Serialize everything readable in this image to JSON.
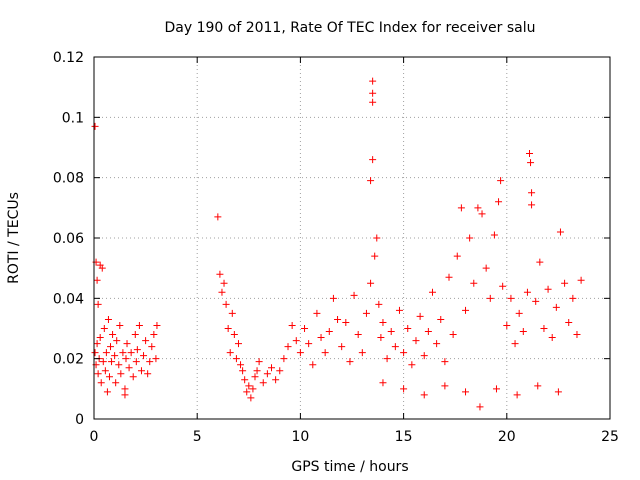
{
  "chart_data": {
    "type": "scatter",
    "title": "Day 190 of 2011, Rate Of TEC Index for receiver salu",
    "xlabel": "GPS time / hours",
    "ylabel": "ROTI / TECUs",
    "xlim": [
      0,
      25
    ],
    "ylim": [
      0,
      0.12
    ],
    "xticks": [
      0,
      5,
      10,
      15,
      20,
      25
    ],
    "xtick_labels": [
      "0",
      "5",
      "10",
      "15",
      "20",
      "25"
    ],
    "yticks": [
      0,
      0.02,
      0.04,
      0.06,
      0.08,
      0.1,
      0.12
    ],
    "ytick_labels": [
      "0",
      "0.02",
      "0.04",
      "0.06",
      "0.08",
      "0.1",
      "0.12"
    ],
    "grid": true,
    "marker": "plus",
    "series_color": "#ff0000",
    "series": [
      {
        "points": [
          [
            0.05,
            0.097
          ],
          [
            0.1,
            0.052
          ],
          [
            0.15,
            0.046
          ],
          [
            0.2,
            0.038
          ],
          [
            0.3,
            0.051
          ],
          [
            0.4,
            0.05
          ],
          [
            0.05,
            0.022
          ],
          [
            0.1,
            0.018
          ],
          [
            0.15,
            0.025
          ],
          [
            0.2,
            0.015
          ],
          [
            0.25,
            0.02
          ],
          [
            0.3,
            0.027
          ],
          [
            0.35,
            0.012
          ],
          [
            0.45,
            0.019
          ],
          [
            0.5,
            0.03
          ],
          [
            0.55,
            0.016
          ],
          [
            0.6,
            0.022
          ],
          [
            0.7,
            0.033
          ],
          [
            0.75,
            0.014
          ],
          [
            0.8,
            0.024
          ],
          [
            0.85,
            0.019
          ],
          [
            0.9,
            0.028
          ],
          [
            1.0,
            0.021
          ],
          [
            1.05,
            0.012
          ],
          [
            1.1,
            0.026
          ],
          [
            1.2,
            0.018
          ],
          [
            1.25,
            0.031
          ],
          [
            1.3,
            0.015
          ],
          [
            1.4,
            0.022
          ],
          [
            1.5,
            0.01
          ],
          [
            1.55,
            0.02
          ],
          [
            1.6,
            0.025
          ],
          [
            1.7,
            0.017
          ],
          [
            1.8,
            0.022
          ],
          [
            1.9,
            0.014
          ],
          [
            2.0,
            0.028
          ],
          [
            2.05,
            0.019
          ],
          [
            2.1,
            0.023
          ],
          [
            2.2,
            0.031
          ],
          [
            2.3,
            0.016
          ],
          [
            2.4,
            0.021
          ],
          [
            2.5,
            0.026
          ],
          [
            2.6,
            0.015
          ],
          [
            2.7,
            0.019
          ],
          [
            2.8,
            0.024
          ],
          [
            2.9,
            0.028
          ],
          [
            3.0,
            0.02
          ],
          [
            3.05,
            0.031
          ],
          [
            1.5,
            0.008
          ],
          [
            0.65,
            0.009
          ],
          [
            6.0,
            0.067
          ],
          [
            6.1,
            0.048
          ],
          [
            6.2,
            0.042
          ],
          [
            6.3,
            0.045
          ],
          [
            6.4,
            0.038
          ],
          [
            6.5,
            0.03
          ],
          [
            6.6,
            0.022
          ],
          [
            6.7,
            0.035
          ],
          [
            6.8,
            0.028
          ],
          [
            6.9,
            0.02
          ],
          [
            7.0,
            0.025
          ],
          [
            7.1,
            0.018
          ],
          [
            7.2,
            0.016
          ],
          [
            7.3,
            0.013
          ],
          [
            7.4,
            0.009
          ],
          [
            7.5,
            0.011
          ],
          [
            7.6,
            0.007
          ],
          [
            7.7,
            0.01
          ],
          [
            7.8,
            0.014
          ],
          [
            7.9,
            0.016
          ],
          [
            8.0,
            0.019
          ],
          [
            8.2,
            0.012
          ],
          [
            8.4,
            0.015
          ],
          [
            8.6,
            0.017
          ],
          [
            8.8,
            0.013
          ],
          [
            9.0,
            0.016
          ],
          [
            9.2,
            0.02
          ],
          [
            9.4,
            0.024
          ],
          [
            9.6,
            0.031
          ],
          [
            9.8,
            0.026
          ],
          [
            10.0,
            0.022
          ],
          [
            10.2,
            0.03
          ],
          [
            10.4,
            0.025
          ],
          [
            10.6,
            0.018
          ],
          [
            10.8,
            0.035
          ],
          [
            11.0,
            0.027
          ],
          [
            11.2,
            0.022
          ],
          [
            11.4,
            0.029
          ],
          [
            11.6,
            0.04
          ],
          [
            11.8,
            0.033
          ],
          [
            12.0,
            0.024
          ],
          [
            12.2,
            0.032
          ],
          [
            12.4,
            0.019
          ],
          [
            12.6,
            0.041
          ],
          [
            12.8,
            0.028
          ],
          [
            13.0,
            0.022
          ],
          [
            13.2,
            0.035
          ],
          [
            13.4,
            0.045
          ],
          [
            13.5,
            0.112
          ],
          [
            13.5,
            0.108
          ],
          [
            13.5,
            0.105
          ],
          [
            13.5,
            0.086
          ],
          [
            13.4,
            0.079
          ],
          [
            13.6,
            0.054
          ],
          [
            13.7,
            0.06
          ],
          [
            13.8,
            0.038
          ],
          [
            13.9,
            0.027
          ],
          [
            14.0,
            0.032
          ],
          [
            14.2,
            0.02
          ],
          [
            14.4,
            0.029
          ],
          [
            14.6,
            0.024
          ],
          [
            14.8,
            0.036
          ],
          [
            15.0,
            0.022
          ],
          [
            15.2,
            0.03
          ],
          [
            15.4,
            0.018
          ],
          [
            15.6,
            0.026
          ],
          [
            15.8,
            0.034
          ],
          [
            16.0,
            0.021
          ],
          [
            16.2,
            0.029
          ],
          [
            16.4,
            0.042
          ],
          [
            16.6,
            0.025
          ],
          [
            16.8,
            0.033
          ],
          [
            17.0,
            0.019
          ],
          [
            17.2,
            0.047
          ],
          [
            17.4,
            0.028
          ],
          [
            17.6,
            0.054
          ],
          [
            17.8,
            0.07
          ],
          [
            18.0,
            0.036
          ],
          [
            18.2,
            0.06
          ],
          [
            18.4,
            0.045
          ],
          [
            18.6,
            0.07
          ],
          [
            18.8,
            0.068
          ],
          [
            19.0,
            0.05
          ],
          [
            19.2,
            0.04
          ],
          [
            19.4,
            0.061
          ],
          [
            19.6,
            0.072
          ],
          [
            19.7,
            0.079
          ],
          [
            19.8,
            0.044
          ],
          [
            20.0,
            0.031
          ],
          [
            20.2,
            0.04
          ],
          [
            20.4,
            0.025
          ],
          [
            20.6,
            0.035
          ],
          [
            20.8,
            0.029
          ],
          [
            21.0,
            0.042
          ],
          [
            21.1,
            0.088
          ],
          [
            21.15,
            0.085
          ],
          [
            21.2,
            0.075
          ],
          [
            21.2,
            0.071
          ],
          [
            21.4,
            0.039
          ],
          [
            21.6,
            0.052
          ],
          [
            21.8,
            0.03
          ],
          [
            22.0,
            0.043
          ],
          [
            22.2,
            0.027
          ],
          [
            22.4,
            0.037
          ],
          [
            22.6,
            0.062
          ],
          [
            22.8,
            0.045
          ],
          [
            23.0,
            0.032
          ],
          [
            23.2,
            0.04
          ],
          [
            23.4,
            0.028
          ],
          [
            23.6,
            0.046
          ],
          [
            14.0,
            0.012
          ],
          [
            15.0,
            0.01
          ],
          [
            16.0,
            0.008
          ],
          [
            17.0,
            0.011
          ],
          [
            18.0,
            0.009
          ],
          [
            18.7,
            0.004
          ],
          [
            19.5,
            0.01
          ],
          [
            20.5,
            0.008
          ],
          [
            21.5,
            0.011
          ],
          [
            22.5,
            0.009
          ]
        ]
      }
    ]
  }
}
